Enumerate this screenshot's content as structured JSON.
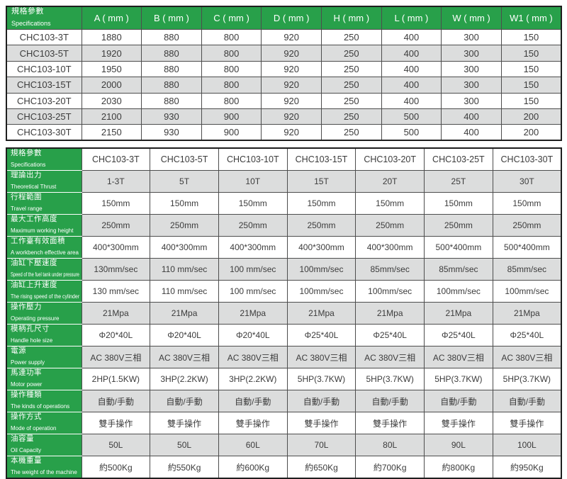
{
  "colors": {
    "accent_green": "#28a04a",
    "stripe_gray": "#dcdddd",
    "text": "#3c3c3c"
  },
  "dimensions_table": {
    "header": {
      "zh": "規格參數",
      "en": "Specifications"
    },
    "columns": [
      "A ( mm )",
      "B ( mm )",
      "C ( mm )",
      "D ( mm )",
      "H ( mm )",
      "L ( mm )",
      "W ( mm )",
      "W1 ( mm )"
    ],
    "rows": [
      {
        "model": "CHC103-3T",
        "values": [
          "1880",
          "880",
          "800",
          "920",
          "250",
          "400",
          "300",
          "150"
        ]
      },
      {
        "model": "CHC103-5T",
        "values": [
          "1920",
          "880",
          "800",
          "920",
          "250",
          "400",
          "300",
          "150"
        ]
      },
      {
        "model": "CHC103-10T",
        "values": [
          "1950",
          "880",
          "800",
          "920",
          "250",
          "400",
          "300",
          "150"
        ]
      },
      {
        "model": "CHC103-15T",
        "values": [
          "2000",
          "880",
          "800",
          "920",
          "250",
          "400",
          "300",
          "150"
        ]
      },
      {
        "model": "CHC103-20T",
        "values": [
          "2030",
          "880",
          "800",
          "920",
          "250",
          "400",
          "300",
          "150"
        ]
      },
      {
        "model": "CHC103-25T",
        "values": [
          "2100",
          "930",
          "900",
          "920",
          "250",
          "500",
          "400",
          "200"
        ]
      },
      {
        "model": "CHC103-30T",
        "values": [
          "2150",
          "930",
          "900",
          "920",
          "250",
          "500",
          "400",
          "200"
        ]
      }
    ]
  },
  "specs_table": {
    "header": {
      "zh": "規格參數",
      "en": "Specifications"
    },
    "models": [
      "CHC103-3T",
      "CHC103-5T",
      "CHC103-10T",
      "CHC103-15T",
      "CHC103-20T",
      "CHC103-25T",
      "CHC103-30T"
    ],
    "rows": [
      {
        "zh": "理論出力",
        "en": "Theoretical Thrust",
        "values": [
          "1-3T",
          "5T",
          "10T",
          "15T",
          "20T",
          "25T",
          "30T"
        ]
      },
      {
        "zh": "行程範圍",
        "en": "Travel range",
        "values": [
          "150mm",
          "150mm",
          "150mm",
          "150mm",
          "150mm",
          "150mm",
          "150mm"
        ]
      },
      {
        "zh": "最大工作高度",
        "en": "Maximum working height",
        "values": [
          "250mm",
          "250mm",
          "250mm",
          "250mm",
          "250mm",
          "250mm",
          "250mm"
        ]
      },
      {
        "zh": "工作臺有效面積",
        "en": "A workbench effective area",
        "values": [
          "400*300mm",
          "400*300mm",
          "400*300mm",
          "400*300mm",
          "400*300mm",
          "500*400mm",
          "500*400mm"
        ]
      },
      {
        "zh": "油缸下壓速度",
        "en": "Speed of the fuel tank under pressure",
        "values": [
          "130mm/sec",
          "110 mm/sec",
          "100 mm/sec",
          "100mm/sec",
          "85mm/sec",
          "85mm/sec",
          "85mm/sec"
        ]
      },
      {
        "zh": "油缸上升速度",
        "en": "The rising speed of the cylinder",
        "values": [
          "130 mm/sec",
          "110 mm/sec",
          "100 mm/sec",
          "100mm/sec",
          "100mm/sec",
          "100mm/sec",
          "100mm/sec"
        ]
      },
      {
        "zh": "操作壓力",
        "en": "Operating pressure",
        "values": [
          "21Mpa",
          "21Mpa",
          "21Mpa",
          "21Mpa",
          "21Mpa",
          "21Mpa",
          "21Mpa"
        ]
      },
      {
        "zh": "模柄孔尺寸",
        "en": "Handle hole size",
        "values": [
          "Φ20*40L",
          "Φ20*40L",
          "Φ20*40L",
          "Φ25*40L",
          "Φ25*40L",
          "Φ25*40L",
          "Φ25*40L"
        ]
      },
      {
        "zh": "電源",
        "en": "Power supply",
        "values": [
          "AC 380V三相",
          "AC 380V三相",
          "AC 380V三相",
          "AC 380V三相",
          "AC 380V三相",
          "AC 380V三相",
          "AC 380V三相"
        ]
      },
      {
        "zh": "馬達功率",
        "en": "Motor power",
        "values": [
          "2HP(1.5KW)",
          "3HP(2.2KW)",
          "3HP(2.2KW)",
          "5HP(3.7KW)",
          "5HP(3.7KW)",
          "5HP(3.7KW)",
          "5HP(3.7KW)"
        ]
      },
      {
        "zh": "操作種類",
        "en": "The kinds of operations",
        "values": [
          "自動/手動",
          "自動/手動",
          "自動/手動",
          "自動/手動",
          "自動/手動",
          "自動/手動",
          "自動/手動"
        ]
      },
      {
        "zh": "操作方式",
        "en": "Mode of operation",
        "values": [
          "雙手操作",
          "雙手操作",
          "雙手操作",
          "雙手操作",
          "雙手操作",
          "雙手操作",
          "雙手操作"
        ]
      },
      {
        "zh": "油容量",
        "en": "Oil Capacity",
        "values": [
          "50L",
          "50L",
          "60L",
          "70L",
          "80L",
          "90L",
          "100L"
        ]
      },
      {
        "zh": "本機重量",
        "en": "The weight of the machine",
        "values": [
          "約500Kg",
          "約550Kg",
          "約600Kg",
          "約650Kg",
          "約700Kg",
          "約800Kg",
          "約950Kg"
        ]
      }
    ]
  }
}
